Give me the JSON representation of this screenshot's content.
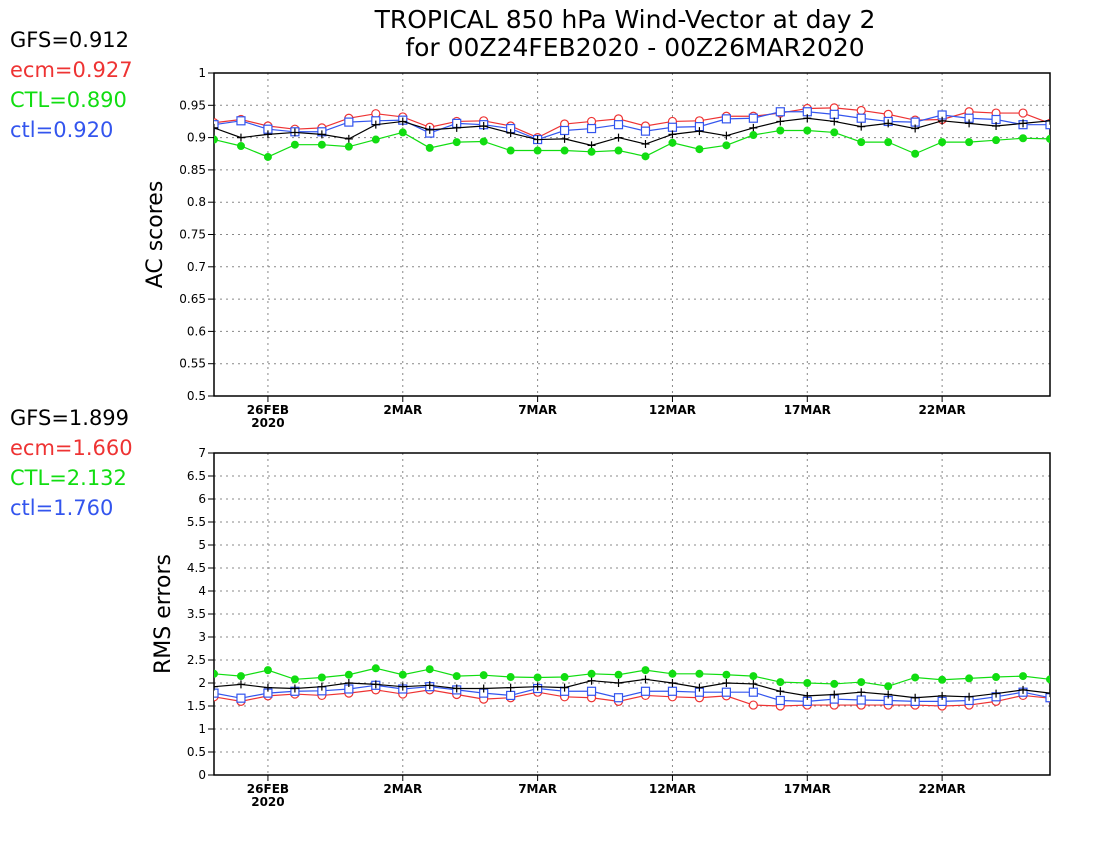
{
  "title": {
    "line1": "TROPICAL 850 hPa Wind-Vector at day 2",
    "line2": "for 00Z24FEB2020 - 00Z26MAR2020"
  },
  "colors": {
    "GFS": "#000000",
    "ecm": "#ee3333",
    "CTL": "#11dd11",
    "ctl": "#3355ee"
  },
  "chart_data": [
    {
      "type": "line",
      "ylabel": "AC scores",
      "ylim": [
        0.5,
        1
      ],
      "yticks": [
        "0.5",
        "0.55",
        "0.6",
        "0.65",
        "0.7",
        "0.75",
        "0.8",
        "0.85",
        "0.9",
        "0.95",
        "1"
      ],
      "xticks": [
        {
          "day": 2,
          "label": "26FEB",
          "sub": "2020"
        },
        {
          "day": 7,
          "label": "2MAR"
        },
        {
          "day": 12,
          "label": "7MAR"
        },
        {
          "day": 17,
          "label": "12MAR"
        },
        {
          "day": 22,
          "label": "17MAR"
        },
        {
          "day": 27,
          "label": "22MAR"
        }
      ],
      "grid": true,
      "x_days": [
        0,
        1,
        2,
        3,
        4,
        5,
        6,
        7,
        8,
        9,
        10,
        11,
        12,
        13,
        14,
        15,
        16,
        17,
        18,
        19,
        20,
        21,
        22,
        23,
        24,
        25,
        26,
        27,
        28,
        29,
        30,
        31
      ],
      "legend_stats": [
        {
          "key": "GFS",
          "text": "GFS=0.912"
        },
        {
          "key": "ecm",
          "text": "ecm=0.927"
        },
        {
          "key": "CTL",
          "text": "CTL=0.890"
        },
        {
          "key": "ctl",
          "text": "ctl=0.920"
        }
      ],
      "series": [
        {
          "key": "ecm",
          "marker": "open-circle",
          "values": [
            0.923,
            0.928,
            0.918,
            0.913,
            0.915,
            0.93,
            0.937,
            0.932,
            0.916,
            0.925,
            0.926,
            0.918,
            0.9,
            0.921,
            0.925,
            0.929,
            0.918,
            0.925,
            0.926,
            0.933,
            0.933,
            0.938,
            0.945,
            0.946,
            0.942,
            0.936,
            0.927,
            0.928,
            0.94,
            0.938,
            0.938,
            0.922
          ]
        },
        {
          "key": "ctl",
          "marker": "open-square",
          "values": [
            0.92,
            0.926,
            0.913,
            0.909,
            0.909,
            0.924,
            0.926,
            0.927,
            0.907,
            0.922,
            0.92,
            0.914,
            0.897,
            0.911,
            0.914,
            0.92,
            0.91,
            0.916,
            0.917,
            0.929,
            0.93,
            0.94,
            0.94,
            0.936,
            0.93,
            0.925,
            0.924,
            0.935,
            0.93,
            0.928,
            0.92,
            0.92
          ]
        },
        {
          "key": "GFS",
          "marker": "plus",
          "values": [
            0.915,
            0.9,
            0.905,
            0.908,
            0.905,
            0.898,
            0.92,
            0.925,
            0.912,
            0.915,
            0.918,
            0.907,
            0.897,
            0.898,
            0.888,
            0.9,
            0.89,
            0.905,
            0.91,
            0.903,
            0.915,
            0.925,
            0.93,
            0.925,
            0.917,
            0.922,
            0.914,
            0.926,
            0.922,
            0.918,
            0.922,
            0.926
          ]
        },
        {
          "key": "CTL",
          "marker": "filled-circle",
          "values": [
            0.897,
            0.887,
            0.87,
            0.889,
            0.889,
            0.886,
            0.897,
            0.908,
            0.884,
            0.893,
            0.894,
            0.88,
            0.88,
            0.88,
            0.878,
            0.88,
            0.871,
            0.892,
            0.882,
            0.888,
            0.904,
            0.911,
            0.911,
            0.908,
            0.893,
            0.893,
            0.875,
            0.893,
            0.893,
            0.896,
            0.899,
            0.898
          ]
        }
      ]
    },
    {
      "type": "line",
      "ylabel": "RMS errors",
      "ylim": [
        0,
        7
      ],
      "yticks": [
        "0",
        "0.5",
        "1",
        "1.5",
        "2",
        "2.5",
        "3",
        "3.5",
        "4",
        "4.5",
        "5",
        "5.5",
        "6",
        "6.5",
        "7"
      ],
      "xticks": [
        {
          "day": 2,
          "label": "26FEB",
          "sub": "2020"
        },
        {
          "day": 7,
          "label": "2MAR"
        },
        {
          "day": 12,
          "label": "7MAR"
        },
        {
          "day": 17,
          "label": "12MAR"
        },
        {
          "day": 22,
          "label": "17MAR"
        },
        {
          "day": 27,
          "label": "22MAR"
        }
      ],
      "grid": true,
      "x_days": [
        0,
        1,
        2,
        3,
        4,
        5,
        6,
        7,
        8,
        9,
        10,
        11,
        12,
        13,
        14,
        15,
        16,
        17,
        18,
        19,
        20,
        21,
        22,
        23,
        24,
        25,
        26,
        27,
        28,
        29,
        30,
        31
      ],
      "legend_stats": [
        {
          "key": "GFS",
          "text": "GFS=1.899"
        },
        {
          "key": "ecm",
          "text": "ecm=1.660"
        },
        {
          "key": "CTL",
          "text": "CTL=2.132"
        },
        {
          "key": "ctl",
          "text": "ctl=1.760"
        }
      ],
      "series": [
        {
          "key": "ecm",
          "marker": "open-circle",
          "values": [
            1.7,
            1.6,
            1.72,
            1.76,
            1.73,
            1.78,
            1.85,
            1.76,
            1.85,
            1.75,
            1.65,
            1.68,
            1.8,
            1.7,
            1.68,
            1.6,
            1.73,
            1.7,
            1.68,
            1.72,
            1.52,
            1.5,
            1.52,
            1.52,
            1.52,
            1.52,
            1.52,
            1.5,
            1.52,
            1.6,
            1.73,
            1.67
          ]
        },
        {
          "key": "ctl",
          "marker": "open-square",
          "values": [
            1.78,
            1.67,
            1.78,
            1.82,
            1.83,
            1.87,
            1.95,
            1.87,
            1.92,
            1.85,
            1.78,
            1.73,
            1.88,
            1.82,
            1.82,
            1.68,
            1.82,
            1.82,
            1.8,
            1.8,
            1.8,
            1.62,
            1.6,
            1.65,
            1.63,
            1.62,
            1.6,
            1.6,
            1.62,
            1.7,
            1.8,
            1.68
          ]
        },
        {
          "key": "GFS",
          "marker": "plus",
          "values": [
            1.92,
            1.97,
            1.9,
            1.88,
            1.92,
            2.0,
            1.97,
            1.92,
            1.95,
            1.88,
            1.88,
            1.9,
            1.92,
            1.9,
            2.05,
            2.0,
            2.08,
            2.0,
            1.9,
            2.0,
            1.98,
            1.82,
            1.72,
            1.75,
            1.8,
            1.75,
            1.68,
            1.72,
            1.7,
            1.77,
            1.85,
            1.78
          ]
        },
        {
          "key": "CTL",
          "marker": "filled-circle",
          "values": [
            2.2,
            2.15,
            2.28,
            2.08,
            2.12,
            2.18,
            2.32,
            2.18,
            2.3,
            2.15,
            2.17,
            2.13,
            2.12,
            2.13,
            2.2,
            2.18,
            2.28,
            2.2,
            2.2,
            2.18,
            2.15,
            2.02,
            2.0,
            1.98,
            2.02,
            1.93,
            2.12,
            2.07,
            2.1,
            2.13,
            2.15,
            2.08
          ]
        }
      ]
    }
  ]
}
